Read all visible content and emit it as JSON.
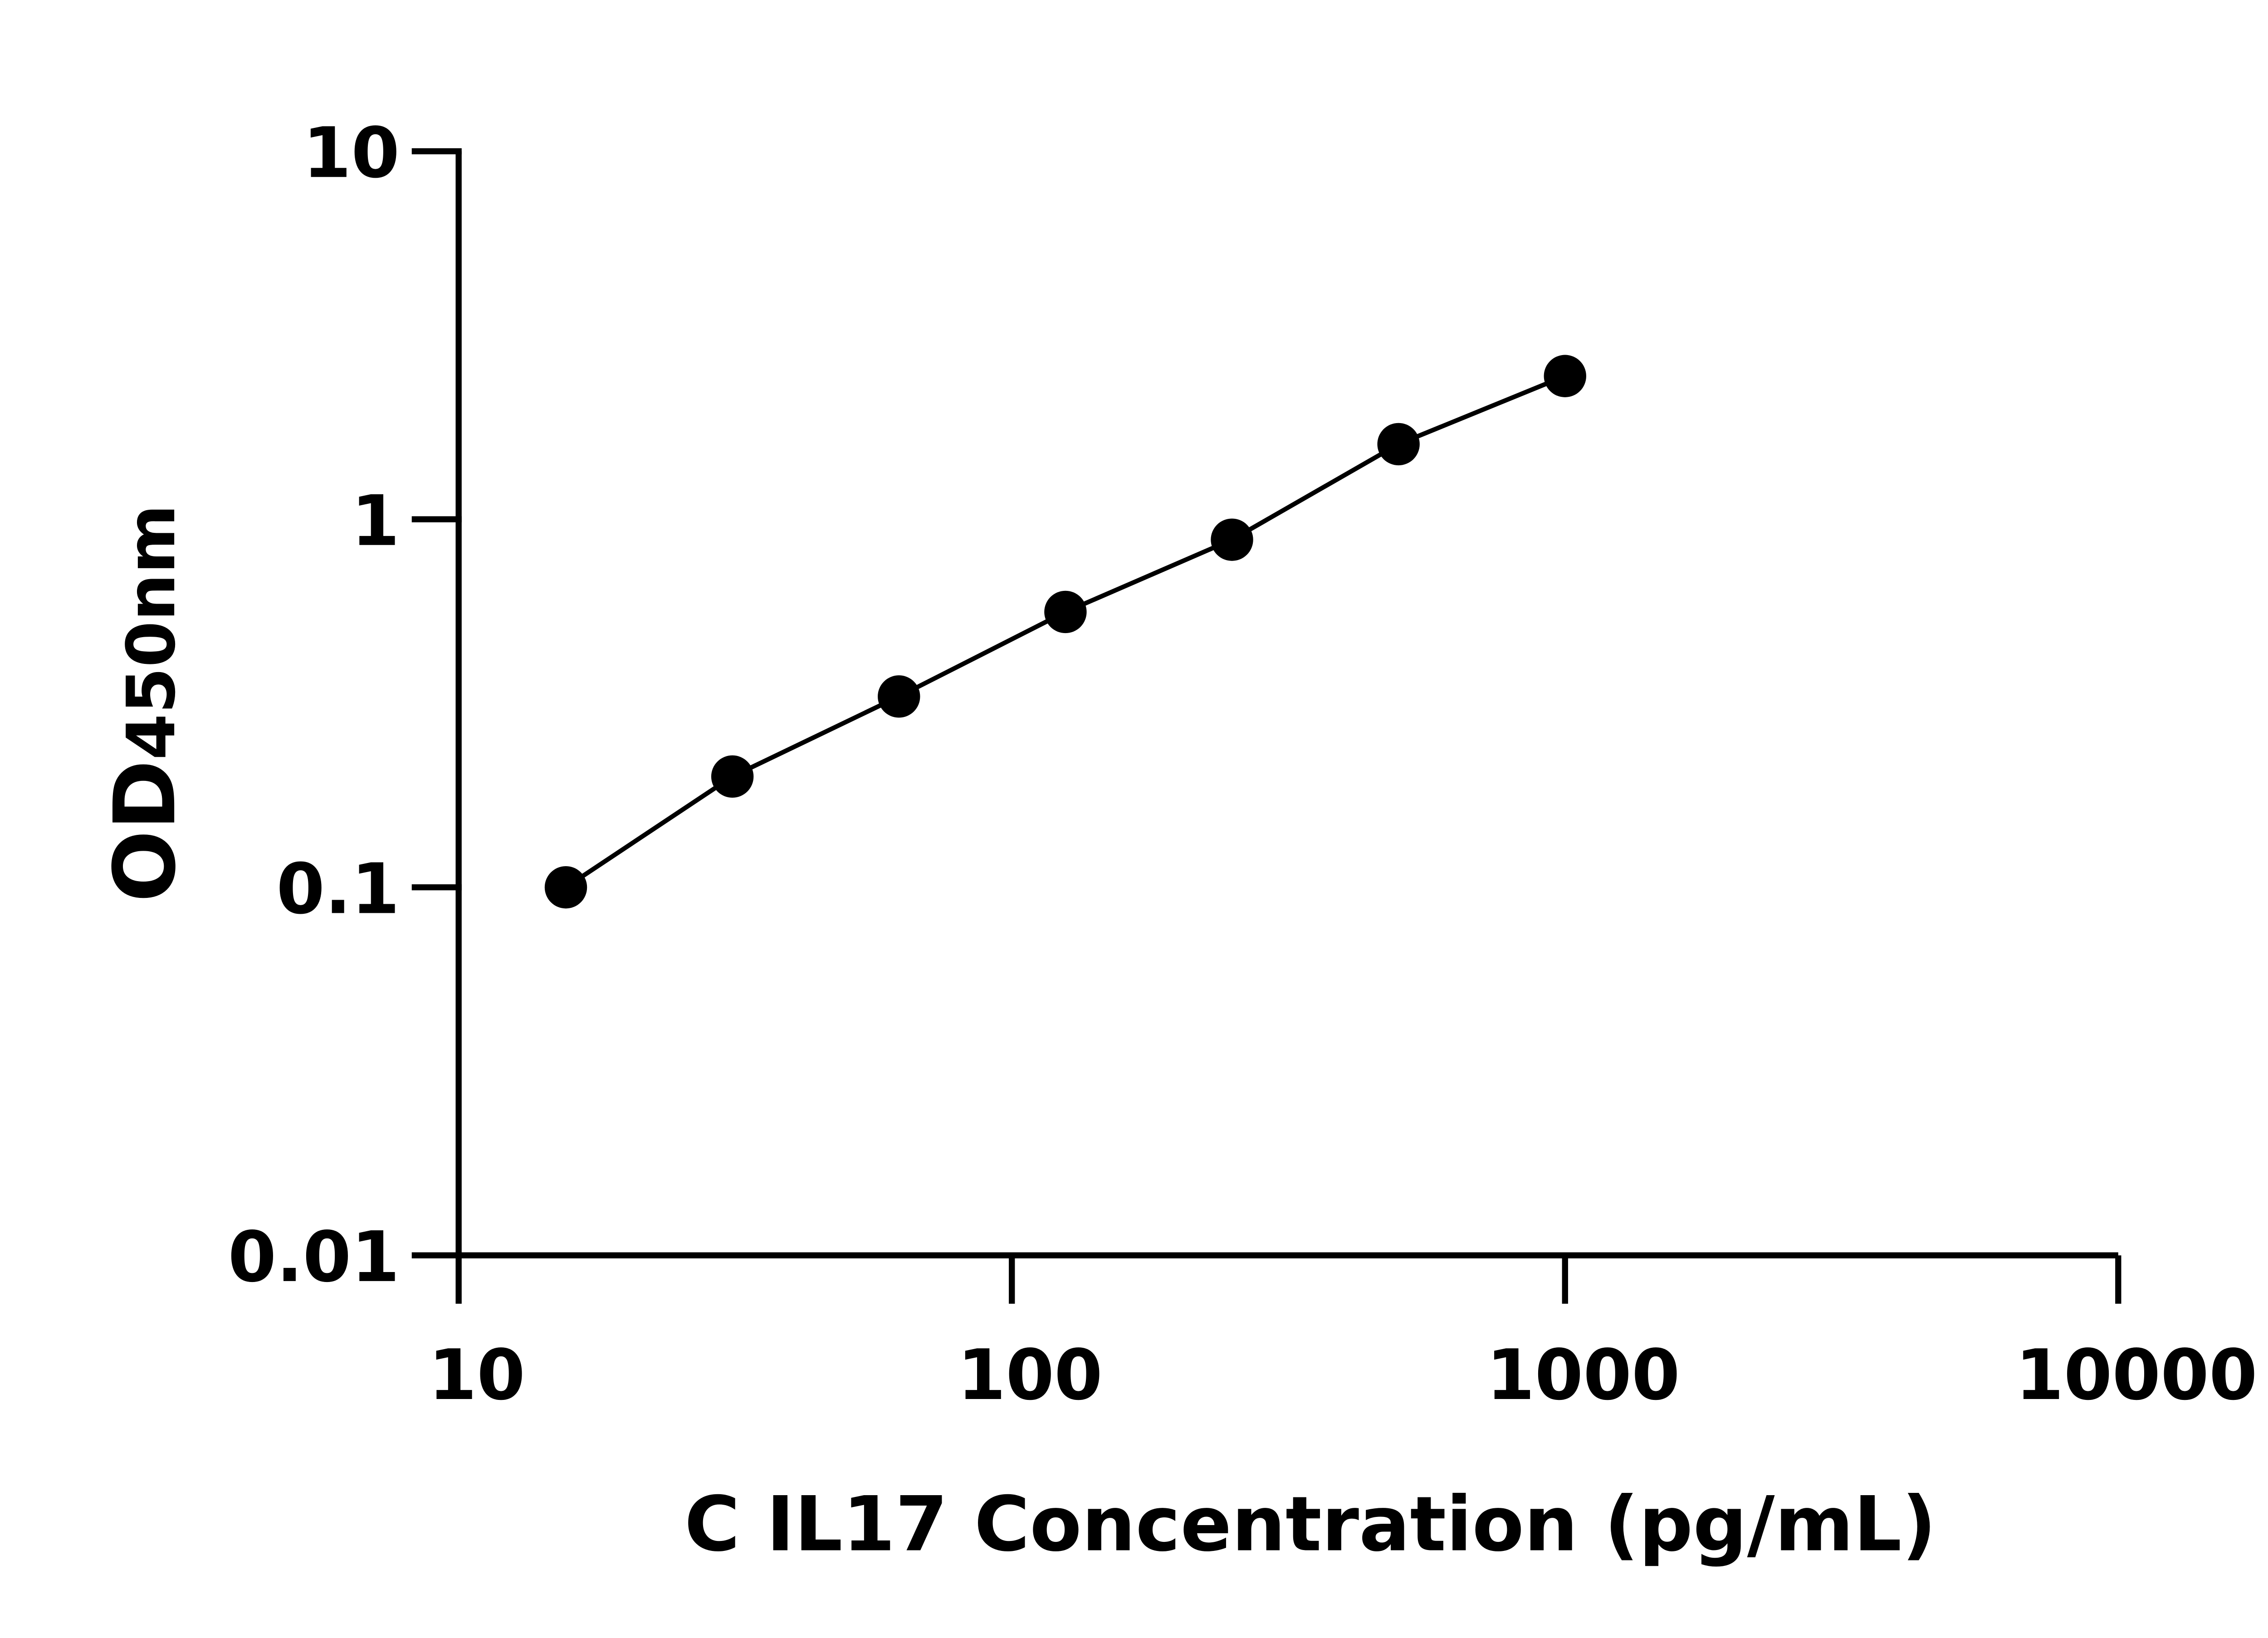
{
  "chart_data": {
    "type": "line",
    "title": "",
    "xlabel": "C IL17 Concentration (pg/mL)",
    "ylabel": {
      "main": "OD",
      "subscript": "450nm"
    },
    "xscale": "log",
    "yscale": "log",
    "xlim": [
      10,
      10000
    ],
    "ylim": [
      0.01,
      10
    ],
    "xticks": [
      "10",
      "100",
      "1000",
      "10000"
    ],
    "yticks": [
      "0.01",
      "0.1",
      "1",
      "10"
    ],
    "grid": false,
    "markers": "filled-circle",
    "color": "#000000",
    "x": [
      15.625,
      31.25,
      62.5,
      125,
      250,
      500,
      1000
    ],
    "y": [
      0.1,
      0.2,
      0.33,
      0.56,
      0.88,
      1.6,
      2.45
    ]
  }
}
